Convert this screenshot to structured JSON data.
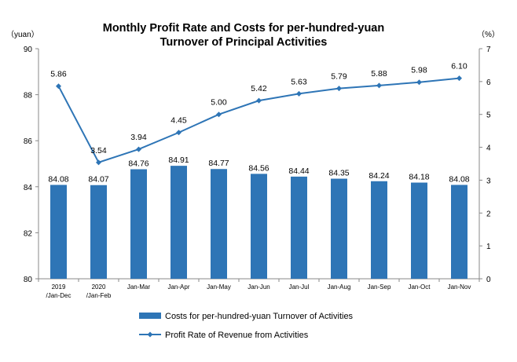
{
  "chart_data": {
    "type": "bar",
    "title_line1": "Monthly Profit Rate and Costs for per-hundred-yuan",
    "title_line2": "Turnover of Principal Activities",
    "left_unit": "（yuan）",
    "right_unit": "（%）",
    "categories": [
      [
        "2019",
        "/Jan-Dec"
      ],
      [
        "2020",
        "/Jan-Feb"
      ],
      [
        "Jan-Mar"
      ],
      [
        "Jan-Apr"
      ],
      [
        "Jan-May"
      ],
      [
        "Jan-Jun"
      ],
      [
        "Jan-Jul"
      ],
      [
        "Jan-Aug"
      ],
      [
        "Jan-Sep"
      ],
      [
        "Jan-Oct"
      ],
      [
        "Jan-Nov"
      ]
    ],
    "left_axis": {
      "min": 80,
      "max": 90,
      "ticks": [
        80,
        82,
        84,
        86,
        88,
        90
      ]
    },
    "right_axis": {
      "min": 0,
      "max": 7,
      "ticks": [
        0,
        1,
        2,
        3,
        4,
        5,
        6,
        7
      ]
    },
    "series": [
      {
        "name": "Costs for per-hundred-yuan Turnover of  Activities",
        "type": "bar",
        "axis": "left",
        "color": "#2E75B6",
        "values": [
          84.08,
          84.07,
          84.76,
          84.91,
          84.77,
          84.56,
          84.44,
          84.35,
          84.24,
          84.18,
          84.08
        ],
        "labels": [
          "84.08",
          "84.07",
          "84.76",
          "84.91",
          "84.77",
          "84.56",
          "84.44",
          "84.35",
          "84.24",
          "84.18",
          "84.08"
        ]
      },
      {
        "name": "Profit Rate of Revenue from Activities",
        "type": "line",
        "axis": "right",
        "color": "#2E75B6",
        "values": [
          5.86,
          3.54,
          3.94,
          4.45,
          5.0,
          5.42,
          5.63,
          5.79,
          5.88,
          5.98,
          6.1
        ],
        "labels": [
          "5.86",
          "3.54",
          "3.94",
          "4.45",
          "5.00",
          "5.42",
          "5.63",
          "5.79",
          "5.88",
          "5.98",
          "6.10"
        ]
      }
    ],
    "legend_position": "bottom-left",
    "grid": false
  }
}
